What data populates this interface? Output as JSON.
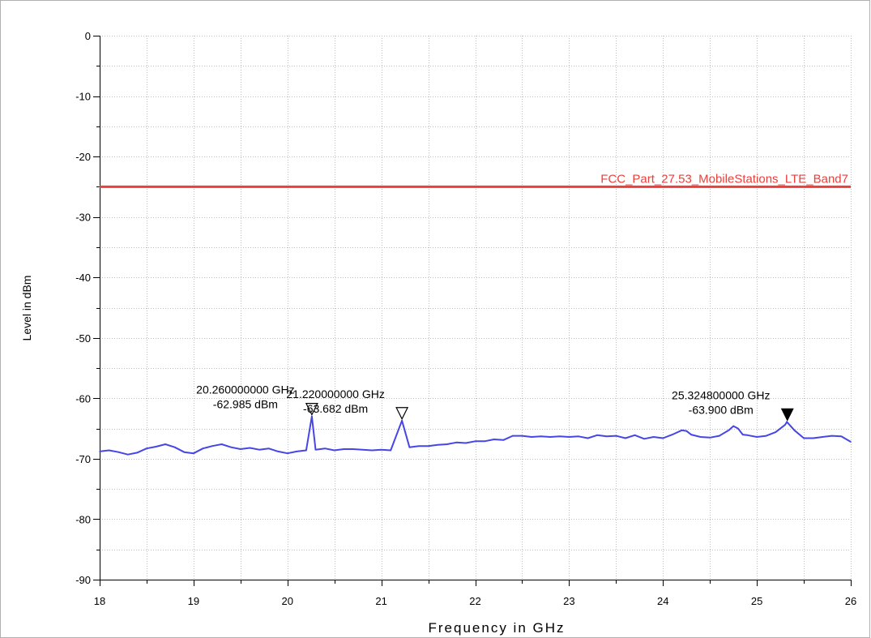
{
  "chart_data": {
    "type": "line",
    "xlabel": "Frequency in GHz",
    "ylabel": "Level in dBm",
    "xlim": [
      18,
      26
    ],
    "ylim": [
      -90,
      0
    ],
    "x_ticks": [
      18,
      19,
      20,
      21,
      22,
      23,
      24,
      25,
      26
    ],
    "y_ticks": [
      0,
      -10,
      -20,
      -30,
      -40,
      -50,
      -60,
      -70,
      -80,
      -90
    ],
    "x_tick_labels": [
      "18",
      "19",
      "20",
      "21",
      "22",
      "23",
      "24",
      "25",
      "26"
    ],
    "y_tick_labels": [
      "0",
      "-10",
      "-20",
      "-30",
      "-40",
      "-50",
      "-60",
      "-70",
      "-80",
      "-90"
    ],
    "grid": true,
    "limit_line": {
      "name": "FCC_Part_27.53_MobileStations_LTE_Band7",
      "y": -25,
      "color": "#e8413c"
    },
    "series": [
      {
        "color": "#4646e6",
        "x": [
          18.0,
          18.1,
          18.2,
          18.3,
          18.4,
          18.5,
          18.6,
          18.7,
          18.8,
          18.9,
          19.0,
          19.1,
          19.2,
          19.3,
          19.4,
          19.5,
          19.6,
          19.7,
          19.8,
          19.9,
          20.0,
          20.1,
          20.2,
          20.26,
          20.3,
          20.4,
          20.5,
          20.6,
          20.7,
          20.8,
          20.9,
          21.0,
          21.1,
          21.22,
          21.3,
          21.4,
          21.5,
          21.6,
          21.7,
          21.8,
          21.9,
          22.0,
          22.1,
          22.2,
          22.3,
          22.4,
          22.5,
          22.6,
          22.7,
          22.8,
          22.9,
          23.0,
          23.1,
          23.2,
          23.3,
          23.4,
          23.5,
          23.6,
          23.7,
          23.8,
          23.9,
          24.0,
          24.1,
          24.2,
          24.25,
          24.3,
          24.4,
          24.5,
          24.6,
          24.7,
          24.75,
          24.8,
          24.85,
          24.9,
          25.0,
          25.1,
          25.2,
          25.3,
          25.32,
          25.4,
          25.5,
          25.6,
          25.7,
          25.8,
          25.9,
          26.0
        ],
        "y": [
          -68.8,
          -68.6,
          -68.9,
          -69.3,
          -69.0,
          -68.3,
          -68.0,
          -67.6,
          -68.1,
          -68.9,
          -69.1,
          -68.3,
          -67.9,
          -67.6,
          -68.1,
          -68.4,
          -68.2,
          -68.5,
          -68.3,
          -68.8,
          -69.1,
          -68.8,
          -68.6,
          -62.985,
          -68.5,
          -68.3,
          -68.6,
          -68.4,
          -68.4,
          -68.5,
          -68.6,
          -68.5,
          -68.6,
          -63.682,
          -68.1,
          -67.9,
          -67.9,
          -67.7,
          -67.6,
          -67.3,
          -67.4,
          -67.1,
          -67.1,
          -66.8,
          -66.9,
          -66.2,
          -66.2,
          -66.4,
          -66.3,
          -66.4,
          -66.3,
          -66.4,
          -66.3,
          -66.6,
          -66.1,
          -66.3,
          -66.2,
          -66.6,
          -66.1,
          -66.7,
          -66.4,
          -66.6,
          -66.0,
          -65.3,
          -65.4,
          -66.0,
          -66.4,
          -66.5,
          -66.2,
          -65.3,
          -64.6,
          -65.0,
          -66.0,
          -66.1,
          -66.4,
          -66.2,
          -65.6,
          -64.4,
          -63.9,
          -65.3,
          -66.6,
          -66.6,
          -66.4,
          -66.2,
          -66.3,
          -67.2
        ]
      }
    ],
    "markers": [
      {
        "x": 20.26,
        "y": -62.985,
        "label_freq": "20.260000000 GHz",
        "label_level": "-62.985 dBm",
        "filled": false
      },
      {
        "x": 21.22,
        "y": -63.682,
        "label_freq": "21.220000000 GHz",
        "label_level": "-63.682 dBm",
        "filled": false
      },
      {
        "x": 25.3248,
        "y": -63.9,
        "label_freq": "25.324800000 GHz",
        "label_level": "-63.900 dBm",
        "filled": true
      }
    ]
  }
}
